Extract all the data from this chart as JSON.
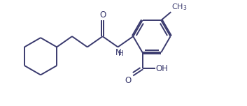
{
  "line_color": "#3a3a6e",
  "bg_color": "#ffffff",
  "line_width": 1.4,
  "font_size": 8.5,
  "fig_w": 3.53,
  "fig_h": 1.52,
  "dpi": 100,
  "xlim": [
    0,
    9.5
  ],
  "ylim": [
    0,
    4.0
  ]
}
